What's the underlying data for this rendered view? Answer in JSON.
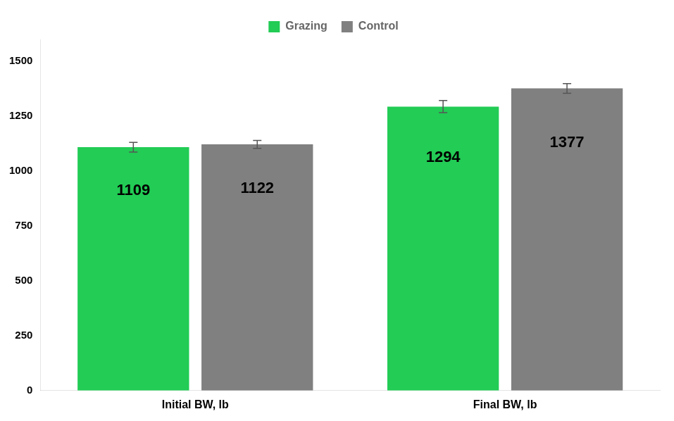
{
  "chart_data": {
    "type": "bar",
    "categories": [
      "Initial BW, lb",
      "Final BW, lb"
    ],
    "series": [
      {
        "name": "Grazing",
        "color": "#22CC55",
        "values": [
          1109,
          1294
        ],
        "errors": [
          22,
          28
        ]
      },
      {
        "name": "Control",
        "color": "#808080",
        "values": [
          1122,
          1377
        ],
        "errors": [
          18,
          22
        ]
      }
    ],
    "ylim": [
      0,
      1600
    ],
    "yticks": [
      0,
      250,
      500,
      750,
      1000,
      1250,
      1500
    ],
    "grid": false,
    "legend": "top",
    "data_labels": true
  }
}
